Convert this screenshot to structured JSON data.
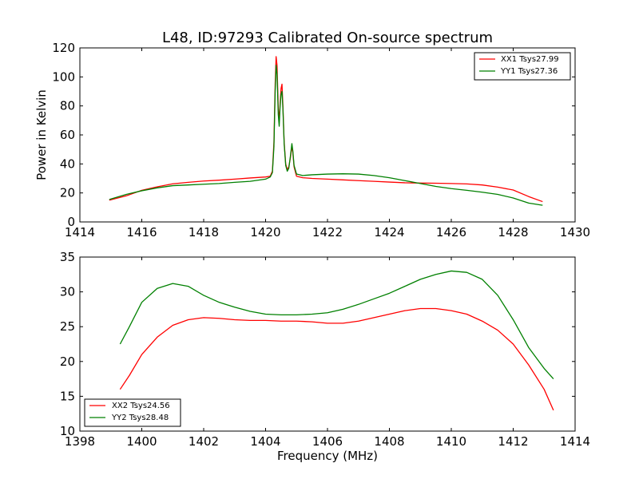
{
  "figure": {
    "title": "L48, ID:97293 Calibrated On-source spectrum",
    "ylabel": "Power in Kelvin",
    "xlabel": "Frequency (MHz)"
  },
  "colors": {
    "xx": "#ff0000",
    "yy": "#008000"
  },
  "chart_data": [
    {
      "type": "line",
      "title": "L48, ID:97293 Calibrated On-source spectrum",
      "ylabel": "Power in Kelvin",
      "xlabel": "",
      "xlim": [
        1414,
        1430
      ],
      "ylim": [
        0,
        120
      ],
      "xticks": [
        1414,
        1416,
        1418,
        1420,
        1422,
        1424,
        1426,
        1428,
        1430
      ],
      "yticks": [
        0,
        20,
        40,
        60,
        80,
        100,
        120
      ],
      "legend_position": "top-right",
      "grid": false,
      "series": [
        {
          "name": "XX1 Tsys27.99",
          "color": "#ff0000",
          "points": [
            [
              1414.95,
              15
            ],
            [
              1415.5,
              18
            ],
            [
              1416,
              21.8
            ],
            [
              1416.5,
              24.2
            ],
            [
              1417,
              26.3
            ],
            [
              1417.5,
              27.3
            ],
            [
              1418,
              28.2
            ],
            [
              1418.5,
              28.8
            ],
            [
              1419,
              29.5
            ],
            [
              1419.5,
              30.3
            ],
            [
              1420,
              31
            ],
            [
              1420.15,
              31.5
            ],
            [
              1420.22,
              35
            ],
            [
              1420.27,
              55
            ],
            [
              1420.31,
              95
            ],
            [
              1420.34,
              114
            ],
            [
              1420.37,
              108
            ],
            [
              1420.41,
              78
            ],
            [
              1420.44,
              70
            ],
            [
              1420.47,
              82
            ],
            [
              1420.5,
              92
            ],
            [
              1420.53,
              95
            ],
            [
              1420.56,
              80
            ],
            [
              1420.6,
              55
            ],
            [
              1420.65,
              40
            ],
            [
              1420.7,
              36
            ],
            [
              1420.75,
              38
            ],
            [
              1420.8,
              44
            ],
            [
              1420.85,
              52
            ],
            [
              1420.88,
              48
            ],
            [
              1420.92,
              38
            ],
            [
              1421,
              31.5
            ],
            [
              1421.2,
              30.5
            ],
            [
              1421.5,
              30
            ],
            [
              1422,
              29.5
            ],
            [
              1422.5,
              29
            ],
            [
              1423,
              28.5
            ],
            [
              1423.5,
              28
            ],
            [
              1424,
              27.5
            ],
            [
              1424.5,
              27
            ],
            [
              1425,
              26.8
            ],
            [
              1425.5,
              26.7
            ],
            [
              1426,
              26.5
            ],
            [
              1426.5,
              26.2
            ],
            [
              1427,
              25.5
            ],
            [
              1427.5,
              24
            ],
            [
              1428,
              22
            ],
            [
              1428.5,
              17.5
            ],
            [
              1428.95,
              14
            ]
          ]
        },
        {
          "name": "YY1 Tsys27.36",
          "color": "#008000",
          "points": [
            [
              1414.95,
              15.5
            ],
            [
              1415.5,
              19
            ],
            [
              1416,
              21.5
            ],
            [
              1416.5,
              23.5
            ],
            [
              1417,
              25
            ],
            [
              1417.5,
              25.5
            ],
            [
              1418,
              26
            ],
            [
              1418.5,
              26.5
            ],
            [
              1419,
              27.3
            ],
            [
              1419.5,
              28
            ],
            [
              1420,
              29.5
            ],
            [
              1420.15,
              31
            ],
            [
              1420.22,
              34
            ],
            [
              1420.27,
              52
            ],
            [
              1420.31,
              90
            ],
            [
              1420.34,
              108
            ],
            [
              1420.37,
              102
            ],
            [
              1420.41,
              74
            ],
            [
              1420.44,
              66
            ],
            [
              1420.47,
              80
            ],
            [
              1420.5,
              88
            ],
            [
              1420.53,
              90
            ],
            [
              1420.56,
              78
            ],
            [
              1420.6,
              54
            ],
            [
              1420.65,
              39
            ],
            [
              1420.7,
              35
            ],
            [
              1420.75,
              37
            ],
            [
              1420.8,
              45
            ],
            [
              1420.85,
              54
            ],
            [
              1420.88,
              49
            ],
            [
              1420.92,
              39
            ],
            [
              1421,
              33
            ],
            [
              1421.2,
              32
            ],
            [
              1421.5,
              32.5
            ],
            [
              1422,
              33
            ],
            [
              1422.5,
              33.2
            ],
            [
              1423,
              33
            ],
            [
              1423.5,
              32
            ],
            [
              1424,
              30.5
            ],
            [
              1424.5,
              28.5
            ],
            [
              1425,
              26.5
            ],
            [
              1425.5,
              24.5
            ],
            [
              1426,
              23
            ],
            [
              1426.5,
              21.8
            ],
            [
              1427,
              20.5
            ],
            [
              1427.5,
              19
            ],
            [
              1428,
              16.5
            ],
            [
              1428.5,
              13
            ],
            [
              1428.95,
              11.5
            ]
          ]
        }
      ]
    },
    {
      "type": "line",
      "title": "",
      "xlabel": "Frequency (MHz)",
      "ylabel": "",
      "xlim": [
        1398,
        1414
      ],
      "ylim": [
        10,
        35
      ],
      "xticks": [
        1398,
        1400,
        1402,
        1404,
        1406,
        1408,
        1410,
        1412,
        1414
      ],
      "yticks": [
        10,
        15,
        20,
        25,
        30,
        35
      ],
      "legend_position": "bottom-left",
      "grid": false,
      "series": [
        {
          "name": "XX2 Tsys24.56",
          "color": "#ff0000",
          "points": [
            [
              1399.3,
              16
            ],
            [
              1399.6,
              18
            ],
            [
              1400,
              21
            ],
            [
              1400.5,
              23.5
            ],
            [
              1401,
              25.2
            ],
            [
              1401.5,
              26
            ],
            [
              1402,
              26.3
            ],
            [
              1402.5,
              26.2
            ],
            [
              1403,
              26
            ],
            [
              1403.5,
              25.9
            ],
            [
              1404,
              25.9
            ],
            [
              1404.5,
              25.8
            ],
            [
              1405,
              25.8
            ],
            [
              1405.5,
              25.7
            ],
            [
              1406,
              25.5
            ],
            [
              1406.5,
              25.5
            ],
            [
              1407,
              25.8
            ],
            [
              1407.5,
              26.3
            ],
            [
              1408,
              26.8
            ],
            [
              1408.5,
              27.3
            ],
            [
              1409,
              27.6
            ],
            [
              1409.5,
              27.6
            ],
            [
              1410,
              27.3
            ],
            [
              1410.5,
              26.8
            ],
            [
              1411,
              25.8
            ],
            [
              1411.5,
              24.5
            ],
            [
              1412,
              22.5
            ],
            [
              1412.5,
              19.5
            ],
            [
              1413,
              16
            ],
            [
              1413.3,
              13
            ]
          ]
        },
        {
          "name": "YY2 Tsys28.48",
          "color": "#008000",
          "points": [
            [
              1399.3,
              22.5
            ],
            [
              1399.6,
              25
            ],
            [
              1400,
              28.5
            ],
            [
              1400.5,
              30.5
            ],
            [
              1401,
              31.2
            ],
            [
              1401.5,
              30.8
            ],
            [
              1402,
              29.5
            ],
            [
              1402.5,
              28.5
            ],
            [
              1403,
              27.8
            ],
            [
              1403.5,
              27.2
            ],
            [
              1404,
              26.8
            ],
            [
              1404.5,
              26.7
            ],
            [
              1405,
              26.7
            ],
            [
              1405.5,
              26.8
            ],
            [
              1406,
              27
            ],
            [
              1406.5,
              27.5
            ],
            [
              1407,
              28.2
            ],
            [
              1407.5,
              29
            ],
            [
              1408,
              29.8
            ],
            [
              1408.5,
              30.8
            ],
            [
              1409,
              31.8
            ],
            [
              1409.5,
              32.5
            ],
            [
              1410,
              33
            ],
            [
              1410.5,
              32.8
            ],
            [
              1411,
              31.8
            ],
            [
              1411.5,
              29.5
            ],
            [
              1412,
              26
            ],
            [
              1412.5,
              22
            ],
            [
              1413,
              19
            ],
            [
              1413.3,
              17.5
            ]
          ]
        }
      ]
    }
  ]
}
